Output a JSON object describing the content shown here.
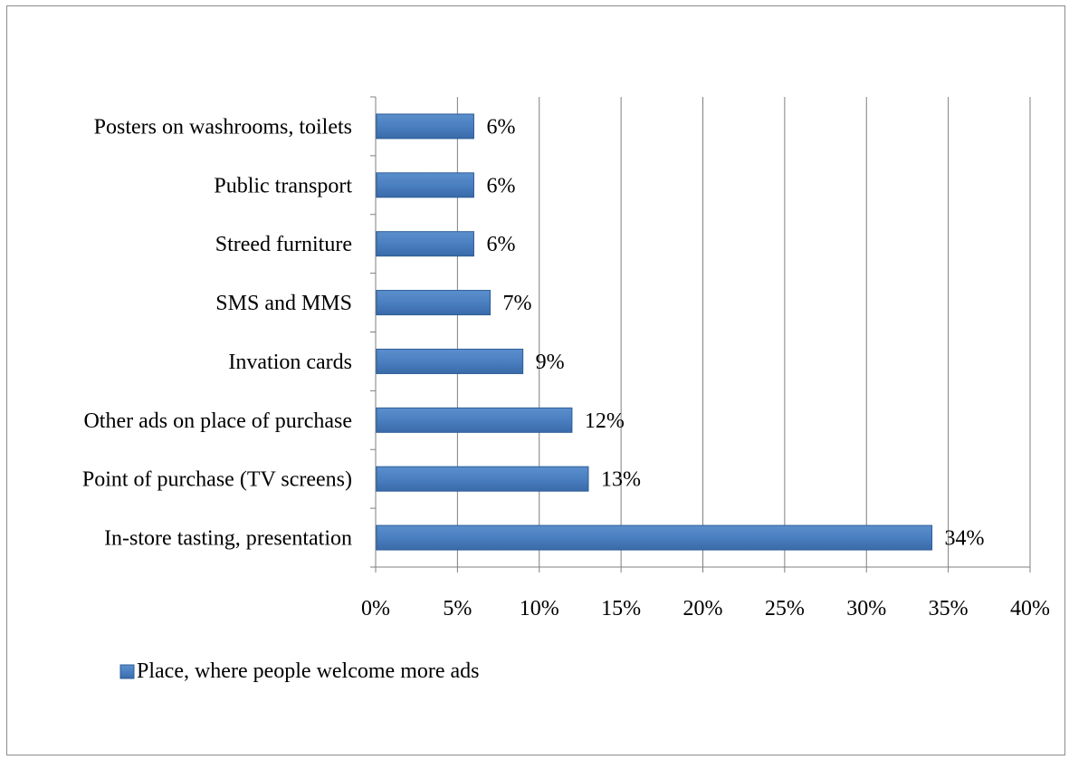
{
  "chart_data": {
    "type": "bar",
    "orientation": "horizontal",
    "categories": [
      "In-store tasting, presentation",
      "Point of purchase (TV screens)",
      "Other ads on place of purchase",
      "Invation cards",
      "SMS and MMS",
      "Streed furniture",
      "Public transport",
      "Posters on washrooms, toilets"
    ],
    "series": [
      {
        "name": "Place, where people welcome more ads",
        "values": [
          0.34,
          0.13,
          0.12,
          0.09,
          0.07,
          0.06,
          0.06,
          0.06
        ],
        "labels": [
          "34%",
          "13%",
          "12%",
          "9%",
          "7%",
          "6%",
          "6%",
          "6%"
        ],
        "color": "#4f81bd"
      }
    ],
    "xlim": [
      0,
      0.4
    ],
    "xticks": [
      0,
      0.05,
      0.1,
      0.15,
      0.2,
      0.25,
      0.3,
      0.35,
      0.4
    ],
    "xtick_labels": [
      "0%",
      "5%",
      "10%",
      "15%",
      "20%",
      "25%",
      "30%",
      "35%",
      "40%"
    ],
    "title": "",
    "xlabel": "",
    "ylabel": "",
    "grid": "vertical",
    "legend_position": "bottom-left"
  },
  "colors": {
    "bar": "#4f81bd",
    "bar_dark": "#2c5d97",
    "gridline": "#7f7f7f",
    "frame": "#8c8c8c"
  }
}
